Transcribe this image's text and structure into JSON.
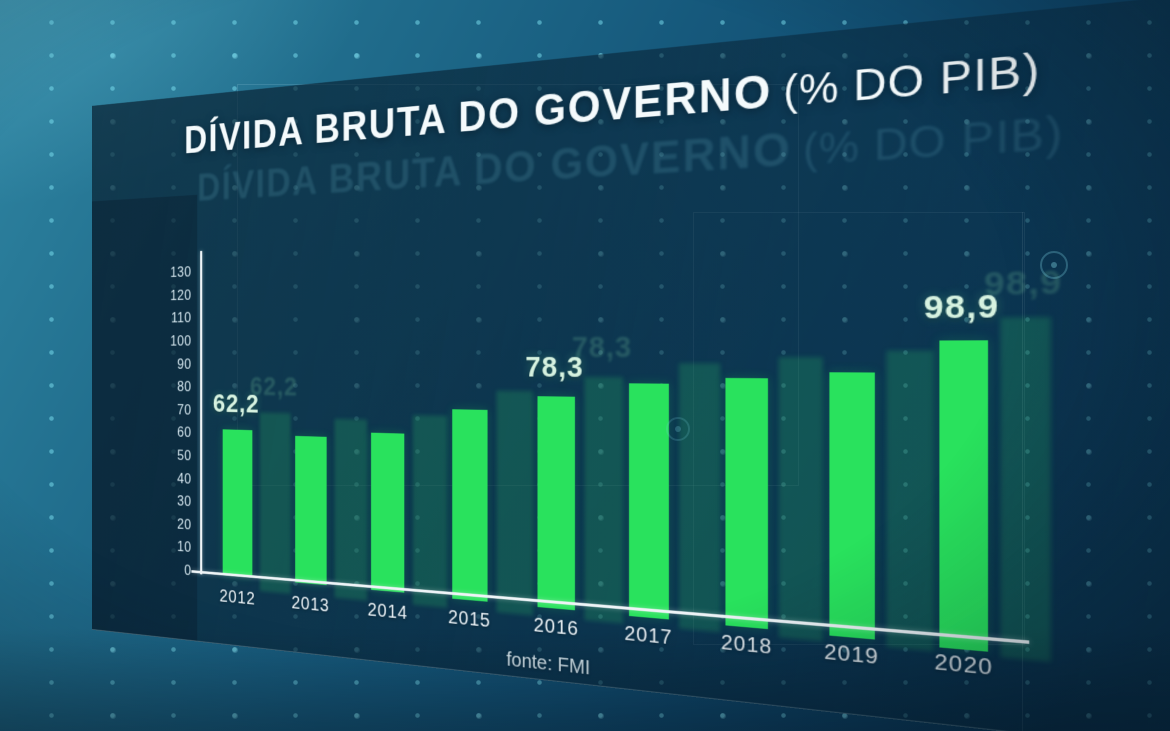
{
  "header": {
    "title": "DÍVIDA BRUTA DO GOVERNO",
    "subtitle": "(% DO PIB)"
  },
  "chart_data": {
    "type": "bar",
    "title": "DÍVIDA BRUTA DO GOVERNO (% DO PIB)",
    "source": "fonte: FMI",
    "categories": [
      "2012",
      "2013",
      "2014",
      "2015",
      "2016",
      "2017",
      "2018",
      "2019",
      "2020"
    ],
    "values": [
      62.2,
      60.2,
      62.3,
      72.6,
      78.3,
      83.6,
      85.6,
      87.9,
      98.9
    ],
    "value_labels": [
      {
        "category": "2012",
        "text": "62,2"
      },
      {
        "category": "2016",
        "text": "78,3"
      },
      {
        "category": "2020",
        "text": "98,9"
      }
    ],
    "ylabel": "",
    "xlabel": "",
    "ylim": [
      0,
      130
    ],
    "yticks": [
      0,
      10,
      20,
      30,
      40,
      50,
      60,
      70,
      80,
      90,
      100,
      110,
      120,
      130
    ],
    "grid": false,
    "legend": false,
    "decimal_separator": ",",
    "colors": {
      "bar": "#29e25d",
      "echo_bar": "rgba(46,216,104,0.20)",
      "value_label": "#d6f2e0",
      "axis": "#eef4f7",
      "tick_label": "#d3e5ed",
      "title": "#f4fafc",
      "background_top": "#2f85a2",
      "background_bottom": "#0a3453",
      "panel": "rgba(6,30,48,0.60)",
      "backdrop_dot": "#7de2f2"
    }
  }
}
